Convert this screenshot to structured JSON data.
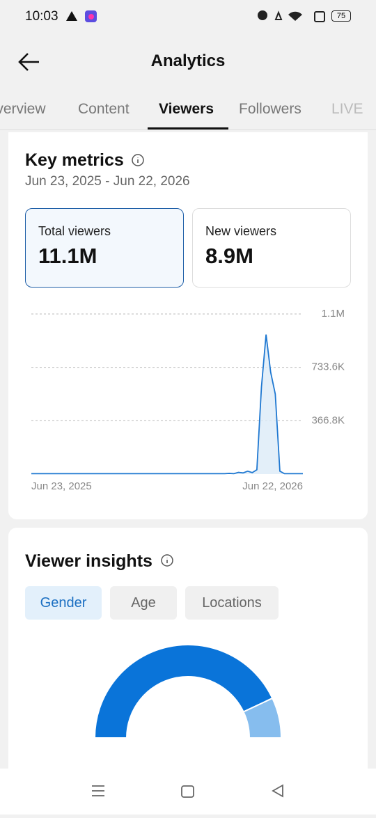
{
  "status_bar": {
    "time": "10:03",
    "battery": "75"
  },
  "header": {
    "title": "Analytics"
  },
  "tabs": [
    "Overview",
    "Content",
    "Viewers",
    "Followers",
    "LIVE"
  ],
  "key_metrics": {
    "title": "Key metrics",
    "date_range": "Jun 23, 2025 - Jun 22, 2026",
    "cards": [
      {
        "label": "Total viewers",
        "value": "11.1M"
      },
      {
        "label": "New viewers",
        "value": "8.9M"
      }
    ]
  },
  "viewer_insights": {
    "title": "Viewer insights",
    "tabs": [
      "Gender",
      "Age",
      "Locations"
    ]
  },
  "chart_data": [
    {
      "type": "line",
      "color": "#1f78d1",
      "categories": [
        "Jun 23, 2025",
        null,
        null,
        null,
        null,
        null,
        null,
        null,
        null,
        null,
        null,
        null,
        null,
        null,
        null,
        null,
        null,
        null,
        null,
        null,
        null,
        null,
        null,
        null,
        null,
        null,
        null,
        null,
        null,
        null,
        null,
        null,
        null,
        null,
        null,
        null,
        null,
        null,
        null,
        null,
        null,
        null,
        null,
        null,
        null,
        null,
        null,
        null,
        null,
        null,
        null,
        null,
        null,
        null,
        null,
        null,
        null,
        null,
        null,
        "Jun 22, 2026"
      ],
      "values": [
        3000,
        3000,
        3000,
        3000,
        3000,
        3000,
        3000,
        3000,
        3000,
        3000,
        3000,
        3000,
        3000,
        3000,
        3000,
        3000,
        3000,
        3000,
        3000,
        3000,
        3000,
        3000,
        3000,
        3000,
        3000,
        3000,
        3000,
        3000,
        3000,
        3000,
        3000,
        3000,
        3000,
        3000,
        3000,
        3000,
        3000,
        3000,
        3000,
        3000,
        3000,
        3000,
        3000,
        5000,
        3000,
        12000,
        8000,
        20000,
        10000,
        30000,
        600000,
        959000,
        700000,
        550000,
        20000,
        3000,
        3000,
        3000,
        3000,
        3000
      ],
      "ylim": [
        0,
        1100400
      ],
      "yticks": [
        {
          "value": 366800,
          "label": "366.8K"
        },
        {
          "value": 733600,
          "label": "733.6K"
        },
        {
          "value": 1100400,
          "label": "1.1M"
        }
      ],
      "grid": true
    },
    {
      "type": "gauge",
      "values": [
        86,
        14
      ],
      "colors": [
        "#0a74d9",
        "#86bdee"
      ]
    }
  ]
}
